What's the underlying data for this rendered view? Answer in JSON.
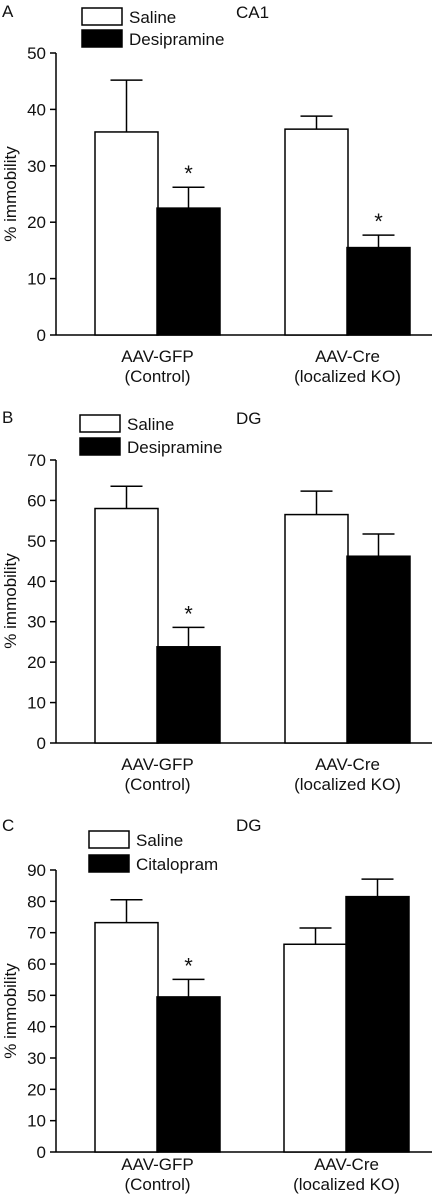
{
  "chart_data": [
    {
      "type": "bar",
      "panel_label": "A",
      "title": "CA1",
      "ylabel": "% immobility",
      "ylim": [
        0,
        50
      ],
      "yticks": [
        0,
        10,
        20,
        30,
        40,
        50
      ],
      "categories": [
        [
          "AAV-GFP",
          "(Control)"
        ],
        [
          "AAV-Cre",
          "(localized KO)"
        ]
      ],
      "series": [
        {
          "name": "Saline",
          "fill": "#ffffff",
          "values": [
            36,
            36.5
          ],
          "errors": [
            9.2,
            2.3
          ],
          "significant": [
            false,
            false
          ]
        },
        {
          "name": "Desipramine",
          "fill": "#000000",
          "values": [
            22.5,
            15.5
          ],
          "errors": [
            3.7,
            2.2
          ],
          "significant": [
            true,
            true
          ]
        }
      ],
      "legend_position": "top-left",
      "significance_marker": "*"
    },
    {
      "type": "bar",
      "panel_label": "B",
      "title": "DG",
      "ylabel": "% immobility",
      "ylim": [
        0,
        70
      ],
      "yticks": [
        0,
        10,
        20,
        30,
        40,
        50,
        60,
        70
      ],
      "categories": [
        [
          "AAV-GFP",
          "(Control)"
        ],
        [
          "AAV-Cre",
          "(localized KO)"
        ]
      ],
      "series": [
        {
          "name": "Saline",
          "fill": "#ffffff",
          "values": [
            58,
            56.5
          ],
          "errors": [
            5.5,
            5.8
          ],
          "significant": [
            false,
            false
          ]
        },
        {
          "name": "Desipramine",
          "fill": "#000000",
          "values": [
            23.8,
            46.2
          ],
          "errors": [
            4.8,
            5.5
          ],
          "significant": [
            true,
            false
          ]
        }
      ],
      "legend_position": "top-left",
      "significance_marker": "*"
    },
    {
      "type": "bar",
      "panel_label": "C",
      "title": "DG",
      "ylabel": "% immobility",
      "ylim": [
        0,
        90
      ],
      "yticks": [
        0,
        10,
        20,
        30,
        40,
        50,
        60,
        70,
        80,
        90
      ],
      "categories": [
        [
          "AAV-GFP",
          "(Control)"
        ],
        [
          "AAV-Cre",
          "(localized KO)"
        ]
      ],
      "series": [
        {
          "name": "Saline",
          "fill": "#ffffff",
          "values": [
            73.2,
            66.3
          ],
          "errors": [
            7.3,
            5.2
          ],
          "significant": [
            false,
            false
          ]
        },
        {
          "name": "Citalopram",
          "fill": "#000000",
          "values": [
            49.5,
            81.5
          ],
          "errors": [
            5.6,
            5.6
          ],
          "significant": [
            true,
            false
          ]
        }
      ],
      "legend_position": "top-left",
      "significance_marker": "*"
    }
  ]
}
